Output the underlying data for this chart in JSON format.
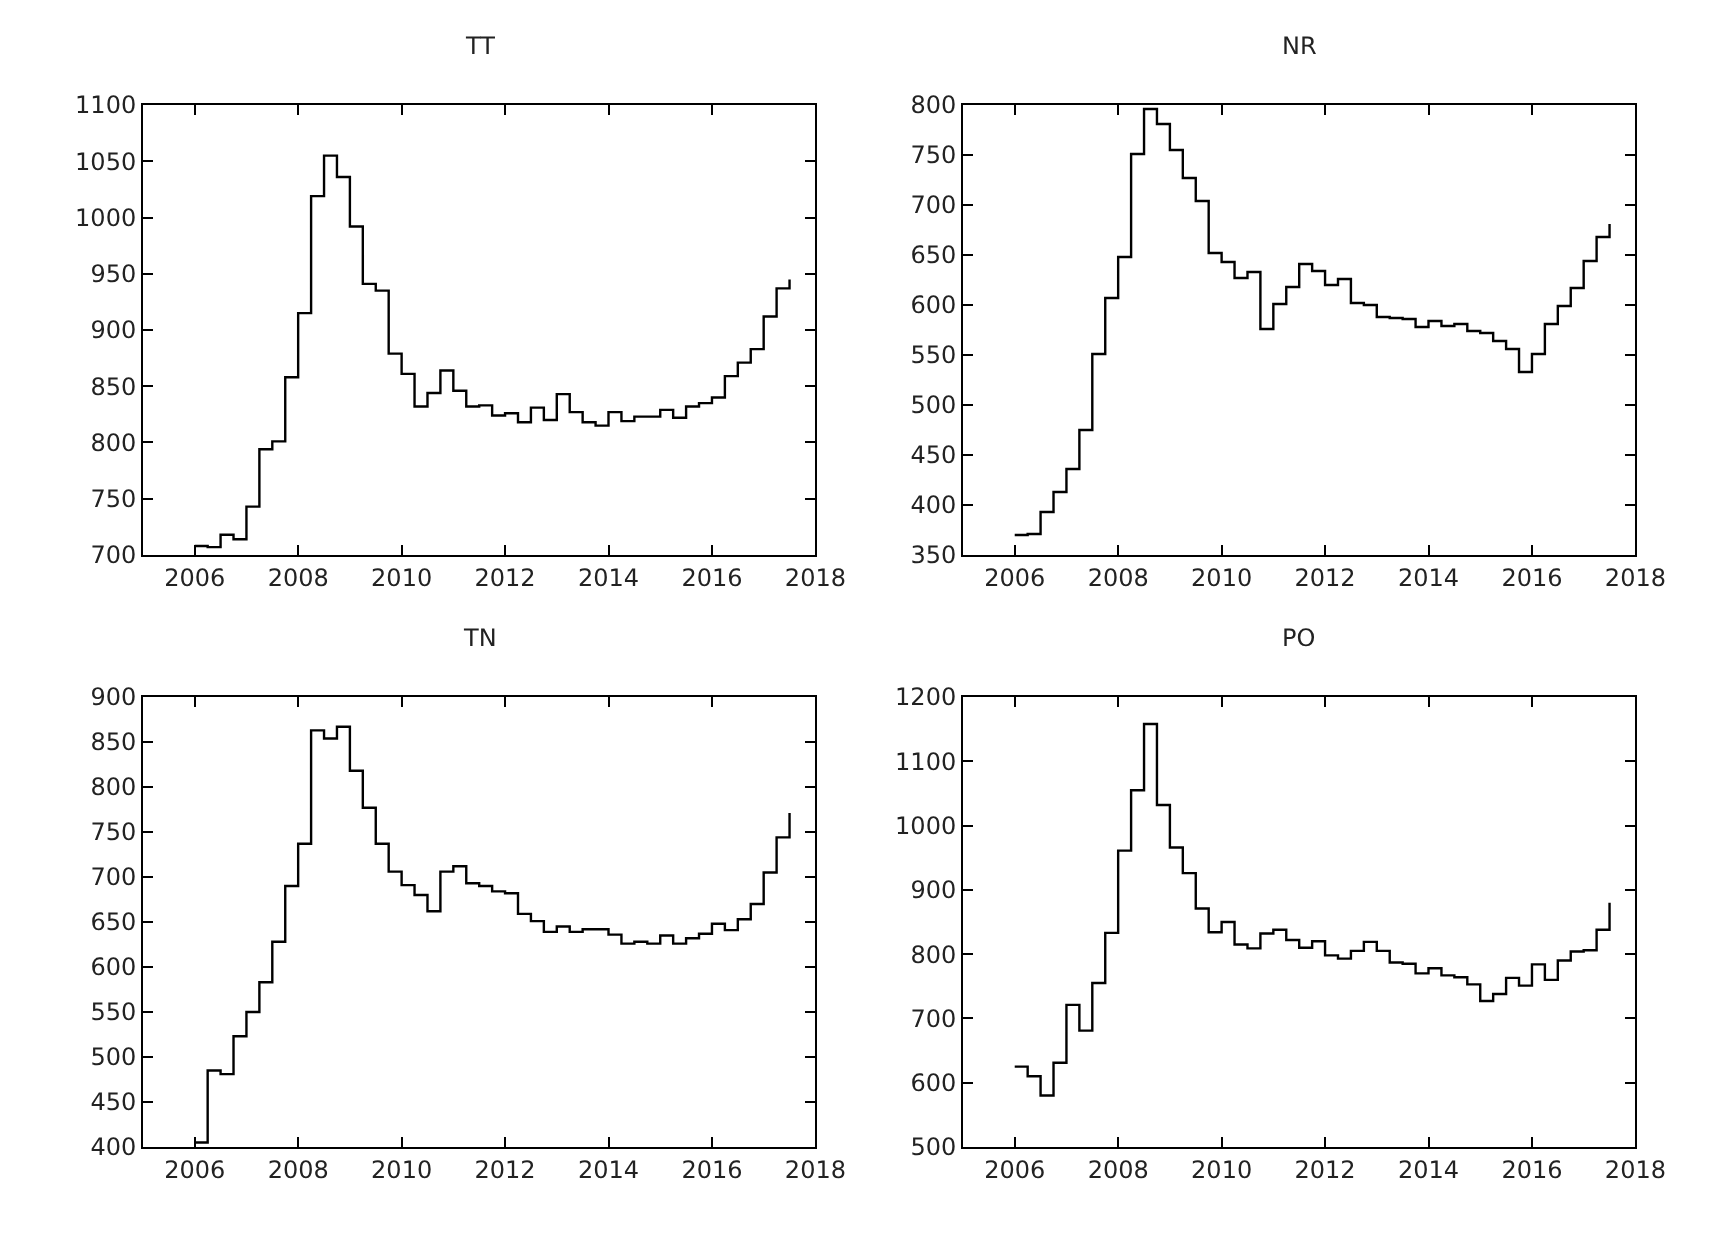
{
  "chart_data": [
    {
      "type": "step",
      "title": "TT",
      "xlim": [
        2005,
        2018
      ],
      "xticks": [
        2006,
        2008,
        2010,
        2012,
        2014,
        2016,
        2018
      ],
      "ylim": [
        700,
        1100
      ],
      "yticks": [
        700,
        750,
        800,
        850,
        900,
        950,
        1000,
        1050,
        1100
      ],
      "marker": "none",
      "line_style": "solid",
      "x": [
        2006.0,
        2006.25,
        2006.5,
        2006.75,
        2007.0,
        2007.25,
        2007.5,
        2007.75,
        2008.0,
        2008.25,
        2008.5,
        2008.75,
        2009.0,
        2009.25,
        2009.5,
        2009.75,
        2010.0,
        2010.25,
        2010.5,
        2010.75,
        2011.0,
        2011.25,
        2011.5,
        2011.75,
        2012.0,
        2012.25,
        2012.5,
        2012.75,
        2013.0,
        2013.25,
        2013.5,
        2013.75,
        2014.0,
        2014.25,
        2014.5,
        2014.75,
        2015.0,
        2015.25,
        2015.5,
        2015.75,
        2016.0,
        2016.25,
        2016.5,
        2016.75,
        2017.0,
        2017.25,
        2017.5
      ],
      "series": [
        {
          "color": "#000000",
          "values": [
            708,
            707,
            718,
            714,
            743,
            794,
            801,
            858,
            915,
            1019,
            1055,
            1036,
            992,
            941,
            935,
            879,
            861,
            832,
            844,
            864,
            846,
            832,
            833,
            824,
            826,
            818,
            831,
            820,
            843,
            827,
            818,
            815,
            827,
            819,
            823,
            823,
            829,
            822,
            832,
            835,
            840,
            859,
            871,
            883,
            912,
            937,
            945
          ]
        }
      ]
    },
    {
      "type": "step",
      "title": "NR",
      "xlim": [
        2005,
        2018
      ],
      "xticks": [
        2006,
        2008,
        2010,
        2012,
        2014,
        2016,
        2018
      ],
      "ylim": [
        350,
        800
      ],
      "yticks": [
        350,
        400,
        450,
        500,
        550,
        600,
        650,
        700,
        750,
        800
      ],
      "marker": "none",
      "line_style": "solid",
      "x": [
        2006.0,
        2006.25,
        2006.5,
        2006.75,
        2007.0,
        2007.25,
        2007.5,
        2007.75,
        2008.0,
        2008.25,
        2008.5,
        2008.75,
        2009.0,
        2009.25,
        2009.5,
        2009.75,
        2010.0,
        2010.25,
        2010.5,
        2010.75,
        2011.0,
        2011.25,
        2011.5,
        2011.75,
        2012.0,
        2012.25,
        2012.5,
        2012.75,
        2013.0,
        2013.25,
        2013.5,
        2013.75,
        2014.0,
        2014.25,
        2014.5,
        2014.75,
        2015.0,
        2015.25,
        2015.5,
        2015.75,
        2016.0,
        2016.25,
        2016.5,
        2016.75,
        2017.0,
        2017.25,
        2017.5
      ],
      "series": [
        {
          "color": "#000000",
          "values": [
            370,
            371,
            393,
            413,
            436,
            475,
            551,
            607,
            648,
            751,
            796,
            781,
            755,
            727,
            704,
            652,
            643,
            627,
            633,
            576,
            601,
            618,
            641,
            634,
            620,
            626,
            602,
            600,
            588,
            587,
            586,
            578,
            584,
            579,
            581,
            574,
            572,
            564,
            556,
            533,
            551,
            581,
            599,
            617,
            644,
            668,
            681
          ]
        }
      ]
    },
    {
      "type": "step",
      "title": "TN",
      "xlim": [
        2005,
        2018
      ],
      "xticks": [
        2006,
        2008,
        2010,
        2012,
        2014,
        2016,
        2018
      ],
      "ylim": [
        400,
        900
      ],
      "yticks": [
        400,
        450,
        500,
        550,
        600,
        650,
        700,
        750,
        800,
        850,
        900
      ],
      "marker": "none",
      "line_style": "solid",
      "x": [
        2006.0,
        2006.25,
        2006.5,
        2006.75,
        2007.0,
        2007.25,
        2007.5,
        2007.75,
        2008.0,
        2008.25,
        2008.5,
        2008.75,
        2009.0,
        2009.25,
        2009.5,
        2009.75,
        2010.0,
        2010.25,
        2010.5,
        2010.75,
        2011.0,
        2011.25,
        2011.5,
        2011.75,
        2012.0,
        2012.25,
        2012.5,
        2012.75,
        2013.0,
        2013.25,
        2013.5,
        2013.75,
        2014.0,
        2014.25,
        2014.5,
        2014.75,
        2015.0,
        2015.25,
        2015.5,
        2015.75,
        2016.0,
        2016.25,
        2016.5,
        2016.75,
        2017.0,
        2017.25,
        2017.5
      ],
      "series": [
        {
          "color": "#000000",
          "values": [
            405,
            485,
            481,
            523,
            550,
            583,
            628,
            690,
            737,
            863,
            854,
            867,
            818,
            777,
            737,
            706,
            691,
            680,
            662,
            706,
            712,
            693,
            690,
            684,
            682,
            659,
            651,
            639,
            645,
            639,
            642,
            642,
            636,
            626,
            628,
            626,
            635,
            626,
            632,
            637,
            648,
            641,
            653,
            670,
            705,
            744,
            771
          ]
        }
      ]
    },
    {
      "type": "step",
      "title": "PO",
      "xlim": [
        2005,
        2018
      ],
      "xticks": [
        2006,
        2008,
        2010,
        2012,
        2014,
        2016,
        2018
      ],
      "ylim": [
        500,
        1200
      ],
      "yticks": [
        500,
        600,
        700,
        800,
        900,
        1000,
        1100,
        1200
      ],
      "marker": "none",
      "line_style": "solid",
      "x": [
        2006.0,
        2006.25,
        2006.5,
        2006.75,
        2007.0,
        2007.25,
        2007.5,
        2007.75,
        2008.0,
        2008.25,
        2008.5,
        2008.75,
        2009.0,
        2009.25,
        2009.5,
        2009.75,
        2010.0,
        2010.25,
        2010.5,
        2010.75,
        2011.0,
        2011.25,
        2011.5,
        2011.75,
        2012.0,
        2012.25,
        2012.5,
        2012.75,
        2013.0,
        2013.25,
        2013.5,
        2013.75,
        2014.0,
        2014.25,
        2014.5,
        2014.75,
        2015.0,
        2015.25,
        2015.5,
        2015.75,
        2016.0,
        2016.25,
        2016.5,
        2016.75,
        2017.0,
        2017.25,
        2017.5
      ],
      "series": [
        {
          "color": "#000000",
          "values": [
            625,
            610,
            580,
            631,
            721,
            681,
            755,
            833,
            961,
            1055,
            1158,
            1032,
            966,
            926,
            871,
            834,
            850,
            815,
            809,
            832,
            838,
            822,
            810,
            820,
            798,
            793,
            805,
            819,
            805,
            787,
            785,
            770,
            778,
            767,
            764,
            753,
            727,
            738,
            763,
            751,
            784,
            760,
            790,
            804,
            806,
            838,
            880
          ]
        }
      ]
    }
  ]
}
